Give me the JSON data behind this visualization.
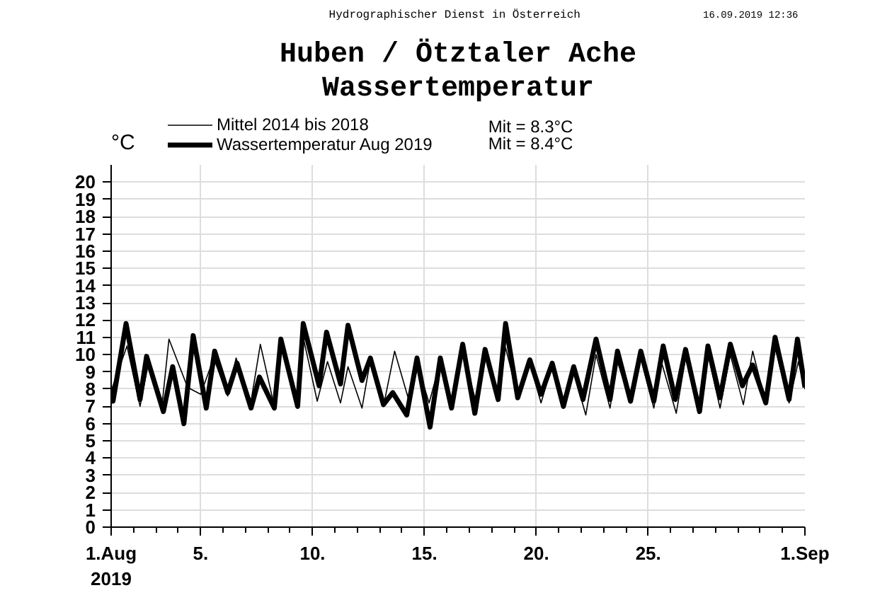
{
  "chart_data": {
    "type": "line",
    "title": "Huben / Ötztaler Ache",
    "subtitle": "Wassertemperatur",
    "ylabel": "°C",
    "annotations": [
      "Hydrographischer Dienst in Österreich",
      "16.09.2019 12:36",
      "Mit =  8.3°C",
      "Mit =  8.4°C"
    ],
    "xlim": [
      "2019-08-01",
      "2019-09-01"
    ],
    "ylim": [
      0,
      21
    ],
    "xticks": [
      {
        "value": "2019-08-01",
        "label": "1.Aug\n2019"
      },
      {
        "value": "2019-08-02",
        "label": null
      },
      {
        "value": "2019-08-03",
        "label": null
      },
      {
        "value": "2019-08-04",
        "label": null
      },
      {
        "value": "2019-08-05",
        "label": "5."
      },
      {
        "value": "2019-08-06",
        "label": null
      },
      {
        "value": "2019-08-07",
        "label": null
      },
      {
        "value": "2019-08-08",
        "label": null
      },
      {
        "value": "2019-08-09",
        "label": null
      },
      {
        "value": "2019-08-10",
        "label": "10."
      },
      {
        "value": "2019-08-11",
        "label": null
      },
      {
        "value": "2019-08-12",
        "label": null
      },
      {
        "value": "2019-08-13",
        "label": null
      },
      {
        "value": "2019-08-14",
        "label": null
      },
      {
        "value": "2019-08-15",
        "label": "15."
      },
      {
        "value": "2019-08-16",
        "label": null
      },
      {
        "value": "2019-08-17",
        "label": null
      },
      {
        "value": "2019-08-18",
        "label": null
      },
      {
        "value": "2019-08-19",
        "label": null
      },
      {
        "value": "2019-08-20",
        "label": "20."
      },
      {
        "value": "2019-08-21",
        "label": null
      },
      {
        "value": "2019-08-22",
        "label": null
      },
      {
        "value": "2019-08-23",
        "label": null
      },
      {
        "value": "2019-08-24",
        "label": null
      },
      {
        "value": "2019-08-25",
        "label": "25."
      },
      {
        "value": "2019-08-26",
        "label": null
      },
      {
        "value": "2019-08-27",
        "label": null
      },
      {
        "value": "2019-08-28",
        "label": null
      },
      {
        "value": "2019-08-29",
        "label": null
      },
      {
        "value": "2019-08-30",
        "label": null
      },
      {
        "value": "2019-08-31",
        "label": null
      },
      {
        "value": "2019-09-01",
        "label": "1.Sep"
      }
    ],
    "yticks": [
      0,
      1,
      2,
      3,
      4,
      5,
      6,
      7,
      8,
      9,
      10,
      11,
      12,
      13,
      14,
      15,
      16,
      17,
      18,
      19,
      20
    ],
    "grid": true,
    "legend": "top left",
    "line_style": "solid",
    "series": [
      {
        "name": "Mittel 2014 bis 2018",
        "color": "#000000",
        "x": [
          "2019-08-01T00:00",
          "2019-08-01T17:00",
          "2019-08-02T07:00",
          "2019-08-02T16:00",
          "2019-08-03T07:00",
          "2019-08-03T14:00",
          "2019-08-04T10:00",
          "2019-08-05T00:00",
          "2019-08-05T14:00",
          "2019-08-06T05:00",
          "2019-08-06T14:00",
          "2019-08-07T06:00",
          "2019-08-07T16:00",
          "2019-08-08T07:00",
          "2019-08-08T14:00",
          "2019-08-09T07:00",
          "2019-08-09T14:00",
          "2019-08-10T05:00",
          "2019-08-10T16:00",
          "2019-08-11T06:00",
          "2019-08-11T14:00",
          "2019-08-12T05:00",
          "2019-08-12T14:00",
          "2019-08-13T04:00",
          "2019-08-13T16:00",
          "2019-08-14T07:00",
          "2019-08-14T17:00",
          "2019-08-15T05:00",
          "2019-08-15T17:00",
          "2019-08-16T05:00",
          "2019-08-16T17:00",
          "2019-08-17T07:00",
          "2019-08-17T17:00",
          "2019-08-18T07:00",
          "2019-08-18T15:00",
          "2019-08-19T05:00",
          "2019-08-19T17:00",
          "2019-08-20T05:00",
          "2019-08-20T17:00",
          "2019-08-21T05:00",
          "2019-08-21T16:00",
          "2019-08-22T05:00",
          "2019-08-22T16:00",
          "2019-08-23T07:00",
          "2019-08-23T15:00",
          "2019-08-24T05:00",
          "2019-08-24T16:00",
          "2019-08-25T06:00",
          "2019-08-25T14:00",
          "2019-08-26T06:00",
          "2019-08-26T16:00",
          "2019-08-27T07:00",
          "2019-08-27T16:00",
          "2019-08-28T05:00",
          "2019-08-28T16:00",
          "2019-08-29T06:00",
          "2019-08-29T16:00",
          "2019-08-30T06:00",
          "2019-08-30T16:00",
          "2019-08-31T07:00",
          "2019-08-31T17:00",
          "2019-09-01T00:00"
        ],
        "values": [
          7.9,
          10.5,
          7.0,
          9.5,
          7.3,
          10.9,
          8.1,
          7.7,
          9.8,
          7.6,
          9.8,
          7.3,
          10.6,
          7.0,
          10.4,
          7.3,
          11.0,
          7.3,
          9.6,
          7.2,
          9.3,
          6.9,
          9.7,
          7.0,
          10.2,
          7.4,
          9.3,
          7.2,
          9.6,
          7.3,
          10.2,
          7.3,
          10.0,
          7.5,
          10.4,
          7.4,
          9.5,
          7.2,
          9.4,
          7.1,
          9.0,
          6.5,
          10.0,
          6.9,
          9.6,
          7.2,
          9.8,
          6.9,
          9.6,
          6.6,
          9.8,
          7.0,
          10.0,
          6.9,
          10.0,
          7.1,
          10.2,
          7.2,
          10.4,
          7.2,
          9.6,
          8.0
        ]
      },
      {
        "name": "Wassertemperatur Aug 2019",
        "color": "#000000",
        "x": [
          "2019-08-01T00:00",
          "2019-08-01T02:00",
          "2019-08-01T16:00",
          "2019-08-02T07:00",
          "2019-08-02T14:00",
          "2019-08-03T08:00",
          "2019-08-03T18:00",
          "2019-08-04T06:00",
          "2019-08-04T16:00",
          "2019-08-05T06:00",
          "2019-08-05T15:00",
          "2019-08-06T05:00",
          "2019-08-06T15:00",
          "2019-08-07T06:00",
          "2019-08-07T15:00",
          "2019-08-08T07:00",
          "2019-08-08T14:00",
          "2019-08-09T08:00",
          "2019-08-09T14:00",
          "2019-08-10T07:00",
          "2019-08-10T15:00",
          "2019-08-11T06:00",
          "2019-08-11T14:00",
          "2019-08-12T05:00",
          "2019-08-12T14:00",
          "2019-08-13T04:00",
          "2019-08-13T14:00",
          "2019-08-14T05:00",
          "2019-08-14T16:00",
          "2019-08-15T06:00",
          "2019-08-15T17:00",
          "2019-08-16T05:00",
          "2019-08-16T17:00",
          "2019-08-17T06:00",
          "2019-08-17T17:00",
          "2019-08-18T07:00",
          "2019-08-18T15:00",
          "2019-08-19T04:00",
          "2019-08-19T17:00",
          "2019-08-20T05:00",
          "2019-08-20T17:00",
          "2019-08-21T05:00",
          "2019-08-21T16:00",
          "2019-08-22T02:00",
          "2019-08-22T16:00",
          "2019-08-23T07:00",
          "2019-08-23T15:00",
          "2019-08-24T05:00",
          "2019-08-24T16:00",
          "2019-08-25T06:00",
          "2019-08-25T16:00",
          "2019-08-26T05:00",
          "2019-08-26T16:00",
          "2019-08-27T07:00",
          "2019-08-27T16:00",
          "2019-08-28T05:00",
          "2019-08-28T16:00",
          "2019-08-29T05:00",
          "2019-08-29T16:00",
          "2019-08-30T06:00",
          "2019-08-30T16:00",
          "2019-08-31T07:00",
          "2019-08-31T16:00",
          "2019-09-01T00:00"
        ],
        "values": [
          8.1,
          7.3,
          11.8,
          7.4,
          9.9,
          6.7,
          9.3,
          6.0,
          11.1,
          6.9,
          10.2,
          7.8,
          9.5,
          6.9,
          8.7,
          6.9,
          10.9,
          7.0,
          11.8,
          8.2,
          11.3,
          8.3,
          11.7,
          8.5,
          9.8,
          7.1,
          7.8,
          6.5,
          9.8,
          5.8,
          9.8,
          6.9,
          10.6,
          6.6,
          10.3,
          7.4,
          11.8,
          7.5,
          9.7,
          7.7,
          9.5,
          7.0,
          9.3,
          7.4,
          10.9,
          7.4,
          10.2,
          7.3,
          10.2,
          7.3,
          10.5,
          7.4,
          10.3,
          6.7,
          10.5,
          7.5,
          10.6,
          8.2,
          9.4,
          7.2,
          11.0,
          7.4,
          10.9,
          8.1
        ]
      }
    ]
  }
}
